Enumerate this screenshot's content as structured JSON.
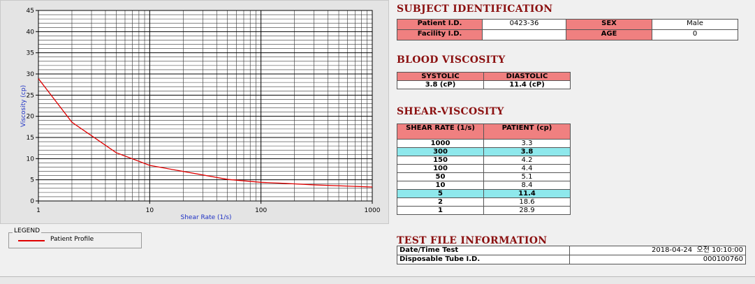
{
  "chart_data": {
    "type": "line",
    "x_label": "Shear Rate (1/s)",
    "y_label": "Viscosity (cp)",
    "x": [
      1000,
      300,
      150,
      100,
      50,
      10,
      5,
      2,
      1
    ],
    "series": [
      {
        "name": "Patient Profile",
        "color": "#e00000",
        "values": [
          3.3,
          3.8,
          4.2,
          4.4,
          5.1,
          8.4,
          11.4,
          18.6,
          28.9
        ]
      }
    ],
    "xscale": "log",
    "xlim": [
      1,
      1000
    ],
    "xticks": [
      1,
      10,
      100,
      1000
    ],
    "xminorticks": [
      2,
      3,
      4,
      5,
      6,
      7,
      8,
      9,
      20,
      30,
      40,
      50,
      60,
      70,
      80,
      90,
      200,
      300,
      400,
      500,
      600,
      700,
      800,
      900
    ],
    "ylim": [
      0,
      45
    ],
    "yticks": [
      0,
      5,
      10,
      15,
      20,
      25,
      30,
      35,
      40,
      45
    ],
    "yminorticks": [
      1,
      2,
      3,
      4,
      6,
      7,
      8,
      9,
      11,
      12,
      13,
      14,
      16,
      17,
      18,
      19,
      21,
      22,
      23,
      24,
      26,
      27,
      28,
      29,
      31,
      32,
      33,
      34,
      36,
      37,
      38,
      39,
      41,
      42,
      43,
      44
    ],
    "grid": true,
    "legend_title": "LEGEND"
  },
  "subject": {
    "title": "SUBJECT IDENTIFICATION",
    "rows": [
      [
        "Patient I.D.",
        "0423-36",
        "SEX",
        "Male"
      ],
      [
        "Facility I.D.",
        null,
        "AGE",
        "0"
      ]
    ]
  },
  "blood": {
    "title": "BLOOD VISCOSITY",
    "headers": [
      "SYSTOLIC",
      "DIASTOLIC"
    ],
    "values": [
      "3.8 (cP)",
      "11.4 (cP)"
    ]
  },
  "shear": {
    "title": "SHEAR-VISCOSITY",
    "headers": [
      "SHEAR RATE (1/s)",
      "PATIENT (cp)"
    ],
    "highlight_rows": [
      1,
      6
    ]
  },
  "test_file": {
    "title": "TEST FILE INFORMATION",
    "rows": [
      [
        "Date/Time Test",
        "2018-04-24  오전 10:10:00"
      ],
      [
        "Disposable Tube I.D.",
        "000100760"
      ]
    ]
  }
}
